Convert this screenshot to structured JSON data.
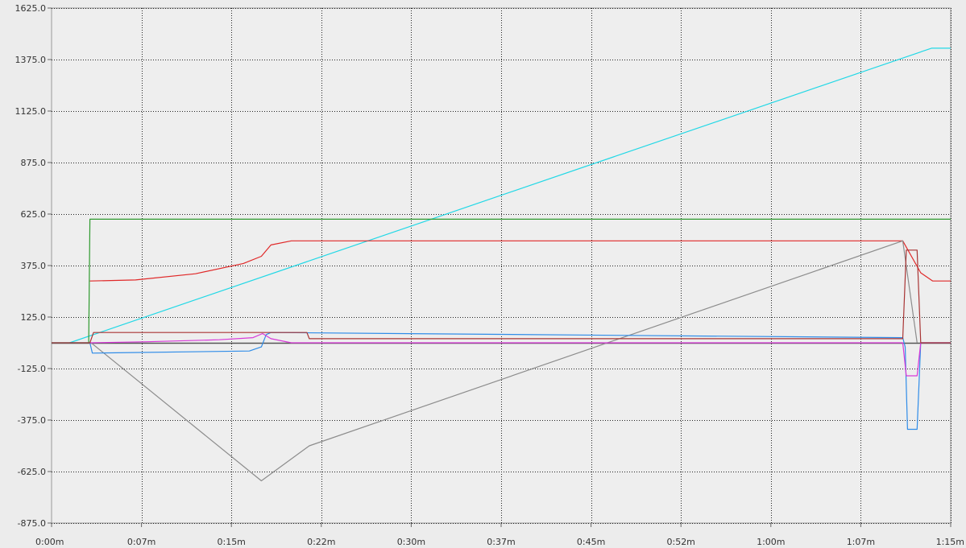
{
  "chart_data": {
    "type": "line",
    "grid": true,
    "x_unit": "minutes",
    "xlim": [
      0,
      75
    ],
    "ylim": [
      -875,
      1625
    ],
    "x_ticks": [
      {
        "value": 0,
        "label": "0:00m"
      },
      {
        "value": 7.5,
        "label": "0:07m"
      },
      {
        "value": 15,
        "label": "0:15m"
      },
      {
        "value": 22.5,
        "label": "0:22m"
      },
      {
        "value": 30,
        "label": "0:30m"
      },
      {
        "value": 37.5,
        "label": "0:37m"
      },
      {
        "value": 45,
        "label": "0:45m"
      },
      {
        "value": 52.5,
        "label": "0:52m"
      },
      {
        "value": 60,
        "label": "1:00m"
      },
      {
        "value": 67.5,
        "label": "1:07m"
      },
      {
        "value": 75,
        "label": "1:15m"
      }
    ],
    "y_ticks": [
      {
        "value": 1625,
        "label": "1625.0"
      },
      {
        "value": 1375,
        "label": "1375.0"
      },
      {
        "value": 1125,
        "label": "1125.0"
      },
      {
        "value": 875,
        "label": "875.0"
      },
      {
        "value": 625,
        "label": "625.0"
      },
      {
        "value": 375,
        "label": "375.0"
      },
      {
        "value": 125,
        "label": "125.0"
      },
      {
        "value": -125,
        "label": "-125.0"
      },
      {
        "value": -375,
        "label": "-375.0"
      },
      {
        "value": -625,
        "label": "-625.0"
      },
      {
        "value": -875,
        "label": "-875.0"
      }
    ],
    "series": [
      {
        "color": "#22d8e6",
        "points": [
          [
            1.5,
            0
          ],
          [
            73.4,
            1430
          ],
          [
            75,
            1430
          ]
        ]
      },
      {
        "color": "#2e9a2e",
        "points": [
          [
            0,
            0
          ],
          [
            3.1,
            0
          ],
          [
            3.2,
            600
          ],
          [
            75,
            600
          ]
        ]
      },
      {
        "color": "#e02828",
        "points": [
          [
            3.2,
            300
          ],
          [
            7,
            305
          ],
          [
            12,
            335
          ],
          [
            16,
            385
          ],
          [
            17.5,
            420
          ],
          [
            18.3,
            475
          ],
          [
            20,
            495
          ],
          [
            71,
            495
          ],
          [
            72.5,
            340
          ],
          [
            73.5,
            300
          ],
          [
            75,
            300
          ]
        ]
      },
      {
        "color": "#8c8c8c",
        "points": [
          [
            3.3,
            0
          ],
          [
            17.5,
            -670
          ],
          [
            21.5,
            -500
          ],
          [
            71,
            495
          ],
          [
            72.2,
            0
          ]
        ]
      },
      {
        "color": "#2f8ce8",
        "points": [
          [
            0,
            0
          ],
          [
            3.2,
            0
          ],
          [
            3.4,
            -50
          ],
          [
            16.5,
            -40
          ],
          [
            17.5,
            -20
          ],
          [
            17.9,
            40
          ],
          [
            18.3,
            50
          ],
          [
            71,
            25
          ],
          [
            71.2,
            -20
          ],
          [
            71.4,
            -420
          ],
          [
            72.2,
            -420
          ],
          [
            72.5,
            0
          ],
          [
            75,
            0
          ]
        ]
      },
      {
        "color": "#d838d8",
        "points": [
          [
            3.2,
            0
          ],
          [
            8,
            5
          ],
          [
            14,
            15
          ],
          [
            16.8,
            25
          ],
          [
            17.6,
            45
          ],
          [
            18.3,
            20
          ],
          [
            20,
            0
          ],
          [
            71,
            0
          ],
          [
            71.3,
            -160
          ],
          [
            72.2,
            -160
          ],
          [
            72.5,
            0
          ],
          [
            75,
            0
          ]
        ]
      },
      {
        "color": "#a83434",
        "points": [
          [
            0,
            0
          ],
          [
            3.2,
            0
          ],
          [
            3.5,
            50
          ],
          [
            18,
            50
          ],
          [
            21.3,
            50
          ],
          [
            21.5,
            20
          ],
          [
            71,
            20
          ],
          [
            71.3,
            450
          ],
          [
            72.2,
            450
          ],
          [
            72.5,
            0
          ],
          [
            75,
            0
          ]
        ]
      }
    ]
  }
}
